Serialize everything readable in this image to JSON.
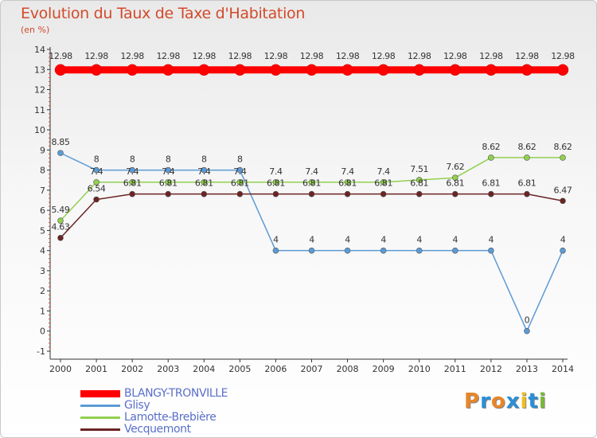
{
  "title": "Evolution du Taux de Taxe d'Habitation",
  "subtitle": "(en %)",
  "logo": {
    "letters": [
      "P",
      "r",
      "o",
      "x",
      "i",
      "t",
      "i"
    ],
    "colors": [
      "#e8862a",
      "#2a8fd8",
      "#e8862a",
      "#2a8fd8",
      "#f0c020",
      "#2a8fd8",
      "#7ab83a"
    ]
  },
  "chart_data": {
    "type": "line",
    "title": "Evolution du Taux de Taxe d'Habitation",
    "ylabel": "(en %)",
    "xlabel": "",
    "x": [
      "2000",
      "2001",
      "2002",
      "2003",
      "2004",
      "2005",
      "2006",
      "2007",
      "2008",
      "2009",
      "2010",
      "2011",
      "2012",
      "2013",
      "2014"
    ],
    "ylim": [
      -1,
      14
    ],
    "yticks": [
      -1,
      0,
      1,
      2,
      3,
      4,
      5,
      6,
      7,
      8,
      9,
      10,
      11,
      12,
      13,
      14
    ],
    "grid": false,
    "legend": "bottom-left",
    "series": [
      {
        "name": "BLANGY-TRONVILLE",
        "color": "#ff0000",
        "width": 9,
        "marker": 7,
        "values": [
          12.98,
          12.98,
          12.98,
          12.98,
          12.98,
          12.98,
          12.98,
          12.98,
          12.98,
          12.98,
          12.98,
          12.98,
          12.98,
          12.98,
          12.98
        ],
        "labels": [
          "12.98",
          "12.98",
          "12.98",
          "12.98",
          "12.98",
          "12.98",
          "12.98",
          "12.98",
          "12.98",
          "12.98",
          "12.98",
          "12.98",
          "12.98",
          "12.98",
          "12.98"
        ]
      },
      {
        "name": "Glisy",
        "color": "#5b9bd5",
        "width": 1.5,
        "marker": 3.5,
        "values": [
          8.85,
          8,
          8,
          8,
          8,
          8,
          4,
          4,
          4,
          4,
          4,
          4,
          4,
          0,
          4
        ],
        "labels": [
          "8.85",
          "8",
          "8",
          "8",
          "8",
          "8",
          "4",
          "4",
          "4",
          "4",
          "4",
          "4",
          "4",
          "0",
          "4"
        ]
      },
      {
        "name": "Lamotte-Brebière",
        "color": "#92d050",
        "width": 1.5,
        "marker": 3.5,
        "values": [
          5.49,
          7.4,
          7.4,
          7.4,
          7.4,
          7.4,
          7.4,
          7.4,
          7.4,
          7.4,
          7.51,
          7.62,
          8.62,
          8.62,
          8.62
        ],
        "labels": [
          "5.49",
          "7.4",
          "7.4",
          "7.4",
          "7.4",
          "7.4",
          "7.4",
          "7.4",
          "7.4",
          "7.4",
          "7.51",
          "7.62",
          "8.62",
          "8.62",
          "8.62"
        ]
      },
      {
        "name": "Vecquemont",
        "color": "#6b2424",
        "width": 1.5,
        "marker": 3.5,
        "values": [
          4.63,
          6.54,
          6.81,
          6.81,
          6.81,
          6.81,
          6.81,
          6.81,
          6.81,
          6.81,
          6.81,
          6.81,
          6.81,
          6.81,
          6.47
        ],
        "labels": [
          "4.63",
          "6.54",
          "6.81",
          "6.81",
          "6.81",
          "6.81",
          "6.81",
          "6.81",
          "6.81",
          "6.81",
          "6.81",
          "6.81",
          "6.81",
          "6.81",
          "6.47"
        ]
      }
    ]
  }
}
